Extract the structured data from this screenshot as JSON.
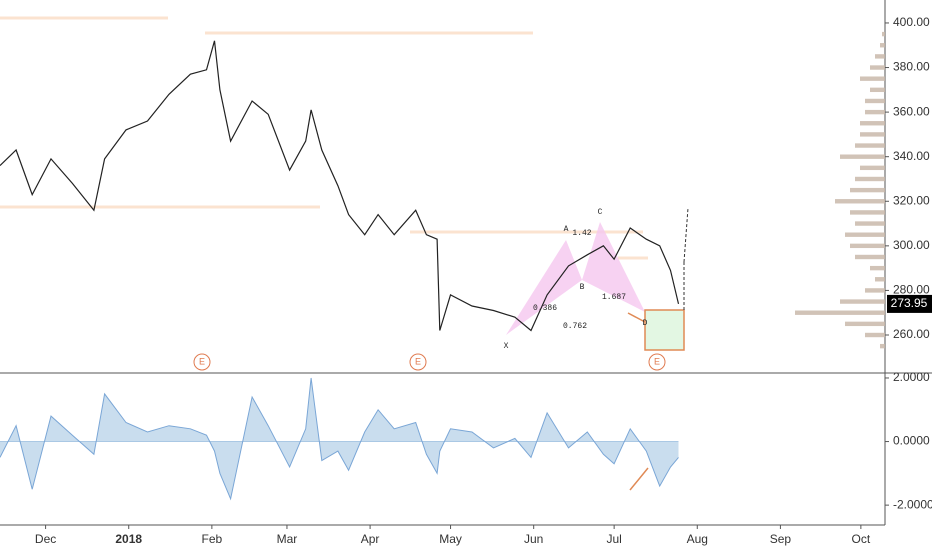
{
  "chart_data": [
    {
      "type": "line",
      "color": "#222222",
      "x": [
        "2017-11-14",
        "2017-11-20",
        "2017-11-26",
        "2017-12-03",
        "2017-12-11",
        "2017-12-19",
        "2017-12-23",
        "2017-12-31",
        "2018-01-08",
        "2018-01-16",
        "2018-01-24",
        "2018-01-30",
        "2018-02-02",
        "2018-02-04",
        "2018-02-08",
        "2018-02-16",
        "2018-02-22",
        "2018-03-02",
        "2018-03-08",
        "2018-03-10",
        "2018-03-14",
        "2018-03-20",
        "2018-03-24",
        "2018-03-30",
        "2018-04-04",
        "2018-04-10",
        "2018-04-18",
        "2018-04-22",
        "2018-04-26",
        "2018-04-27",
        "2018-05-01",
        "2018-05-09",
        "2018-05-17",
        "2018-05-25",
        "2018-05-31",
        "2018-06-06",
        "2018-06-14",
        "2018-06-21",
        "2018-06-27",
        "2018-07-01",
        "2018-07-07",
        "2018-07-13",
        "2018-07-18",
        "2018-07-22",
        "2018-07-25"
      ],
      "values": [
        336,
        343,
        323,
        339,
        328,
        316,
        339,
        352,
        356,
        368,
        377,
        379,
        392,
        370,
        347,
        365,
        359,
        334,
        347,
        361,
        343,
        327,
        314,
        305,
        314,
        305,
        316,
        305,
        303,
        262,
        278,
        273,
        271,
        268,
        262,
        278,
        291,
        296,
        300,
        294,
        308,
        303,
        300,
        289,
        273.95
      ],
      "last_price": 273.95,
      "xlim": [
        "2017-11-14",
        "2018-10-10"
      ],
      "xticks": [
        {
          "value": "2017-12-01",
          "label": "Dec"
        },
        {
          "value": "2018-01-01",
          "label": "2018"
        },
        {
          "value": "2018-02-01",
          "label": "Feb"
        },
        {
          "value": "2018-03-01",
          "label": "Mar"
        },
        {
          "value": "2018-04-01",
          "label": "Apr"
        },
        {
          "value": "2018-05-01",
          "label": "May"
        },
        {
          "value": "2018-06-01",
          "label": "Jun"
        },
        {
          "value": "2018-07-01",
          "label": "Jul"
        },
        {
          "value": "2018-08-01",
          "label": "Aug"
        },
        {
          "value": "2018-09-01",
          "label": "Sep"
        },
        {
          "value": "2018-10-01",
          "label": "Oct"
        }
      ],
      "ylim": [
        243.4,
        410.3
      ],
      "yticks": [
        {
          "value": 260,
          "label": "260.00"
        },
        {
          "value": 280,
          "label": "280.00"
        },
        {
          "value": 300,
          "label": "300.00"
        },
        {
          "value": 320,
          "label": "320.00"
        },
        {
          "value": 340,
          "label": "340.00"
        },
        {
          "value": 360,
          "label": "360.00"
        },
        {
          "value": 380,
          "label": "380.00"
        },
        {
          "value": 400,
          "label": "400.00"
        }
      ],
      "pattern_labels": [
        "X",
        "A",
        "B",
        "C",
        "D"
      ],
      "ratios": [
        1.42,
        0.386,
        1.687,
        0.762
      ],
      "events": [
        "E",
        "E",
        "E"
      ]
    },
    {
      "type": "area",
      "color": "#7aa6d6",
      "fill": "#bcd4ea",
      "x": [
        "2017-11-14",
        "2017-11-20",
        "2017-11-26",
        "2017-12-03",
        "2017-12-11",
        "2017-12-19",
        "2017-12-23",
        "2017-12-31",
        "2018-01-08",
        "2018-01-16",
        "2018-01-24",
        "2018-01-30",
        "2018-02-02",
        "2018-02-04",
        "2018-02-08",
        "2018-02-16",
        "2018-02-22",
        "2018-03-02",
        "2018-03-08",
        "2018-03-10",
        "2018-03-14",
        "2018-03-20",
        "2018-03-24",
        "2018-03-30",
        "2018-04-04",
        "2018-04-10",
        "2018-04-18",
        "2018-04-22",
        "2018-04-26",
        "2018-04-27",
        "2018-05-01",
        "2018-05-09",
        "2018-05-17",
        "2018-05-25",
        "2018-05-31",
        "2018-06-06",
        "2018-06-14",
        "2018-06-21",
        "2018-06-27",
        "2018-07-01",
        "2018-07-07",
        "2018-07-13",
        "2018-07-18",
        "2018-07-22",
        "2018-07-25"
      ],
      "values": [
        -0.5,
        0.5,
        -1.5,
        0.8,
        0.2,
        -0.4,
        1.5,
        0.6,
        0.3,
        0.5,
        0.4,
        0.2,
        -0.3,
        -1,
        -1.8,
        1.4,
        0.5,
        -0.8,
        0.4,
        2.0,
        -0.6,
        -0.3,
        -0.9,
        0.3,
        1.0,
        0.4,
        0.6,
        -0.4,
        -1.0,
        -0.3,
        0.4,
        0.3,
        -0.2,
        0.1,
        -0.5,
        0.9,
        -0.2,
        0.3,
        -0.4,
        -0.7,
        0.4,
        -0.3,
        -1.4,
        -0.8,
        -0.5
      ],
      "ylim": [
        -2.625,
        2.125
      ],
      "yticks": [
        {
          "value": 2,
          "label": "2.0000"
        },
        {
          "value": 0,
          "label": "0.0000"
        },
        {
          "value": -2,
          "label": "-2.0000"
        }
      ]
    },
    {
      "type": "hbar",
      "color": "#c9b8aa",
      "levels": [
        255,
        260,
        265,
        270,
        275,
        280,
        285,
        290,
        295,
        300,
        305,
        310,
        315,
        320,
        325,
        330,
        335,
        340,
        345,
        350,
        355,
        360,
        365,
        370,
        375,
        380,
        385,
        390,
        395
      ],
      "values": [
        5,
        20,
        40,
        90,
        45,
        20,
        10,
        15,
        30,
        35,
        40,
        30,
        35,
        50,
        35,
        30,
        25,
        45,
        30,
        25,
        25,
        20,
        20,
        15,
        25,
        15,
        10,
        5,
        3
      ],
      "xlim": [
        0,
        100
      ]
    }
  ]
}
